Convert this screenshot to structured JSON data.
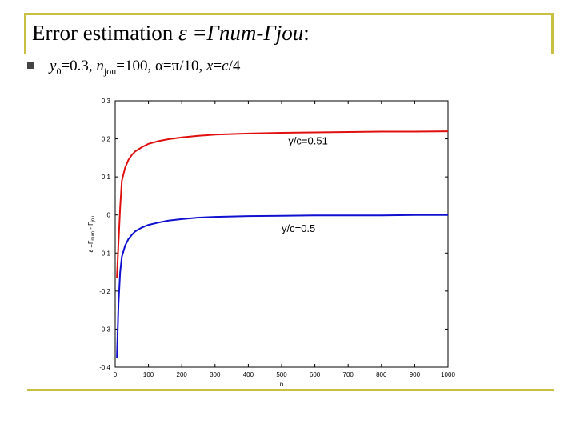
{
  "slide": {
    "title_prefix": "Error  estimation ",
    "title_formula": "ε =Гnum-Гjou",
    "title_suffix": ":",
    "bullet": {
      "y_label": "y",
      "y_sub": "0",
      "y_value": "=0.3, ",
      "n_label": "n",
      "n_sub": "jou",
      "n_value": "=100, ",
      "alpha_text": "α=π/10, ",
      "x_label": "x",
      "x_value": "=",
      "c_label": "c",
      "c_tail": "/4"
    }
  },
  "colors": {
    "frame": "#c8c040",
    "series_red": "#e01010",
    "series_blue": "#1010d0"
  },
  "chart_data": {
    "type": "line",
    "xlabel": "n",
    "ylabel": "ε =Г",
    "ylabel_sub": "num",
    "ylabel_tail": " - Г",
    "ylabel_sub2": "jou",
    "xlim": [
      0,
      1000
    ],
    "ylim": [
      -0.4,
      0.3
    ],
    "xticks": [
      0,
      100,
      200,
      300,
      400,
      500,
      600,
      700,
      800,
      900,
      1000
    ],
    "yticks": [
      -0.4,
      -0.3,
      -0.2,
      -0.1,
      0,
      0.1,
      0.2,
      0.3
    ],
    "grid": false,
    "series": [
      {
        "name": "y/c=0.51",
        "color": "#e01010",
        "x": [
          5,
          10,
          15,
          20,
          30,
          40,
          50,
          60,
          80,
          100,
          130,
          160,
          200,
          250,
          300,
          400,
          500,
          600,
          700,
          800,
          900,
          1000
        ],
        "y": [
          -0.165,
          -0.07,
          0.02,
          0.09,
          0.125,
          0.145,
          0.158,
          0.167,
          0.178,
          0.187,
          0.194,
          0.199,
          0.204,
          0.208,
          0.211,
          0.214,
          0.216,
          0.217,
          0.218,
          0.219,
          0.219,
          0.22
        ]
      },
      {
        "name": "y/c=0.5",
        "color": "#1010d0",
        "x": [
          5,
          10,
          15,
          20,
          30,
          40,
          50,
          60,
          80,
          100,
          130,
          160,
          200,
          250,
          300,
          400,
          500,
          600,
          700,
          800,
          900,
          1000
        ],
        "y": [
          -0.375,
          -0.23,
          -0.15,
          -0.11,
          -0.08,
          -0.063,
          -0.052,
          -0.043,
          -0.033,
          -0.026,
          -0.02,
          -0.015,
          -0.011,
          -0.007,
          -0.005,
          -0.003,
          -0.002,
          -0.001,
          -0.001,
          -0.001,
          0,
          0
        ]
      }
    ],
    "annotations": [
      {
        "text": "y/c=0.51",
        "x": 520,
        "y": 0.185
      },
      {
        "text": "y/c=0.5",
        "x": 500,
        "y": -0.045
      }
    ]
  }
}
